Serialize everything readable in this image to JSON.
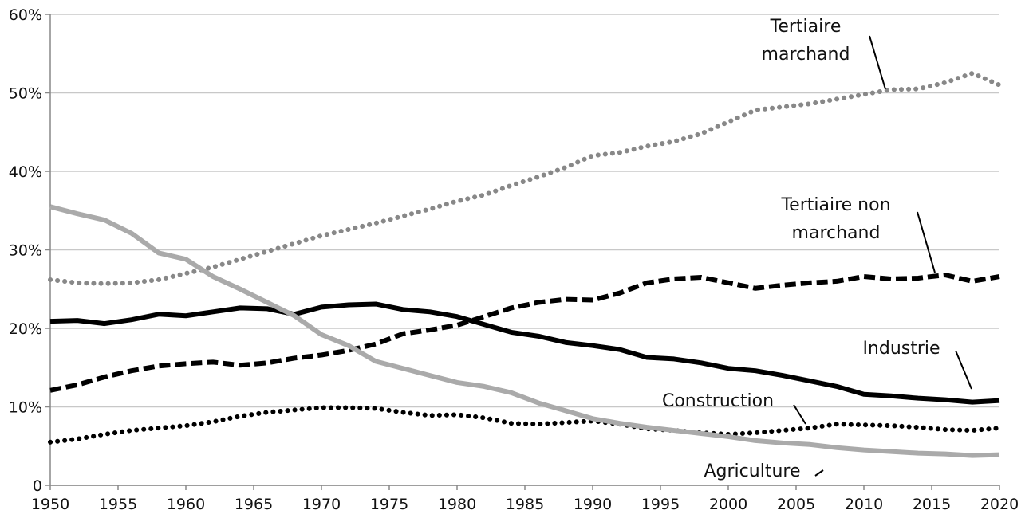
{
  "chart_data": {
    "type": "line",
    "x": [
      1950,
      1952,
      1954,
      1956,
      1958,
      1960,
      1962,
      1964,
      1966,
      1968,
      1970,
      1972,
      1974,
      1976,
      1978,
      1980,
      1982,
      1984,
      1986,
      1988,
      1990,
      1992,
      1994,
      1996,
      1998,
      2000,
      2002,
      2004,
      2006,
      2008,
      2010,
      2012,
      2014,
      2016,
      2018,
      2020
    ],
    "xlim": [
      1950,
      2020
    ],
    "xticks": [
      1950,
      1955,
      1960,
      1965,
      1970,
      1975,
      1980,
      1985,
      1990,
      1995,
      2000,
      2005,
      2010,
      2015,
      2020
    ],
    "ylim": [
      0,
      60
    ],
    "yticks": [
      0,
      {
        "value": 10,
        "label": "10%"
      },
      {
        "value": 20,
        "label": "20%"
      },
      {
        "value": 30,
        "label": "30%"
      },
      {
        "value": 40,
        "label": "40%"
      },
      {
        "value": 50,
        "label": "50%"
      },
      {
        "value": 60,
        "label": "60%"
      }
    ],
    "grid": true,
    "series": [
      {
        "name": "Tertiaire marchand",
        "color": "#888888",
        "dash": "dotted",
        "values": [
          26.2,
          25.8,
          25.7,
          25.8,
          26.2,
          27,
          27.8,
          28.8,
          29.8,
          30.8,
          31.8,
          32.6,
          33.4,
          34.3,
          35.2,
          36.2,
          37,
          38.2,
          39.3,
          40.5,
          42,
          42.4,
          43.2,
          43.8,
          44.8,
          46.3,
          47.8,
          48.2,
          48.6,
          49.2,
          49.8,
          50.4,
          50.5,
          51.3,
          52.5,
          51
        ]
      },
      {
        "name": "Tertiaire non marchand",
        "color": "#000000",
        "dash": "dashed",
        "values": [
          12.1,
          12.8,
          13.8,
          14.6,
          15.2,
          15.5,
          15.7,
          15.3,
          15.6,
          16.2,
          16.6,
          17.2,
          18,
          19.3,
          19.8,
          20.4,
          21.5,
          22.6,
          23.3,
          23.7,
          23.6,
          24.5,
          25.8,
          26.3,
          26.5,
          25.8,
          25.1,
          25.5,
          25.8,
          26,
          26.6,
          26.3,
          26.4,
          26.8,
          26,
          26.6
        ]
      },
      {
        "name": "Industrie",
        "color": "#000000",
        "dash": "solid",
        "values": [
          20.9,
          21,
          20.6,
          21.1,
          21.8,
          21.6,
          22.1,
          22.6,
          22.5,
          21.8,
          22.7,
          23,
          23.1,
          22.4,
          22.1,
          21.5,
          20.5,
          19.5,
          19,
          18.2,
          17.8,
          17.3,
          16.3,
          16.1,
          15.6,
          14.9,
          14.6,
          14,
          13.3,
          12.6,
          11.6,
          11.4,
          11.1,
          10.9,
          10.6,
          10.8
        ]
      },
      {
        "name": "Construction",
        "color": "#000000",
        "dash": "dotted",
        "values": [
          5.5,
          5.9,
          6.5,
          7,
          7.3,
          7.6,
          8.1,
          8.8,
          9.3,
          9.6,
          9.9,
          9.9,
          9.8,
          9.3,
          8.9,
          9,
          8.6,
          7.9,
          7.8,
          8,
          8.2,
          7.8,
          7.2,
          7,
          6.7,
          6.5,
          6.7,
          7,
          7.3,
          7.8,
          7.7,
          7.6,
          7.4,
          7.1,
          7,
          7.3
        ]
      },
      {
        "name": "Agriculture",
        "color": "#aaaaaa",
        "dash": "solid",
        "values": [
          35.5,
          34.6,
          33.8,
          32.1,
          29.6,
          28.8,
          26.6,
          25,
          23.3,
          21.6,
          19.2,
          17.8,
          15.8,
          14.9,
          14,
          13.1,
          12.6,
          11.8,
          10.5,
          9.5,
          8.5,
          7.9,
          7.4,
          7,
          6.6,
          6.2,
          5.7,
          5.4,
          5.2,
          4.8,
          4.5,
          4.3,
          4.1,
          4,
          3.8,
          3.9
        ]
      }
    ]
  }
}
